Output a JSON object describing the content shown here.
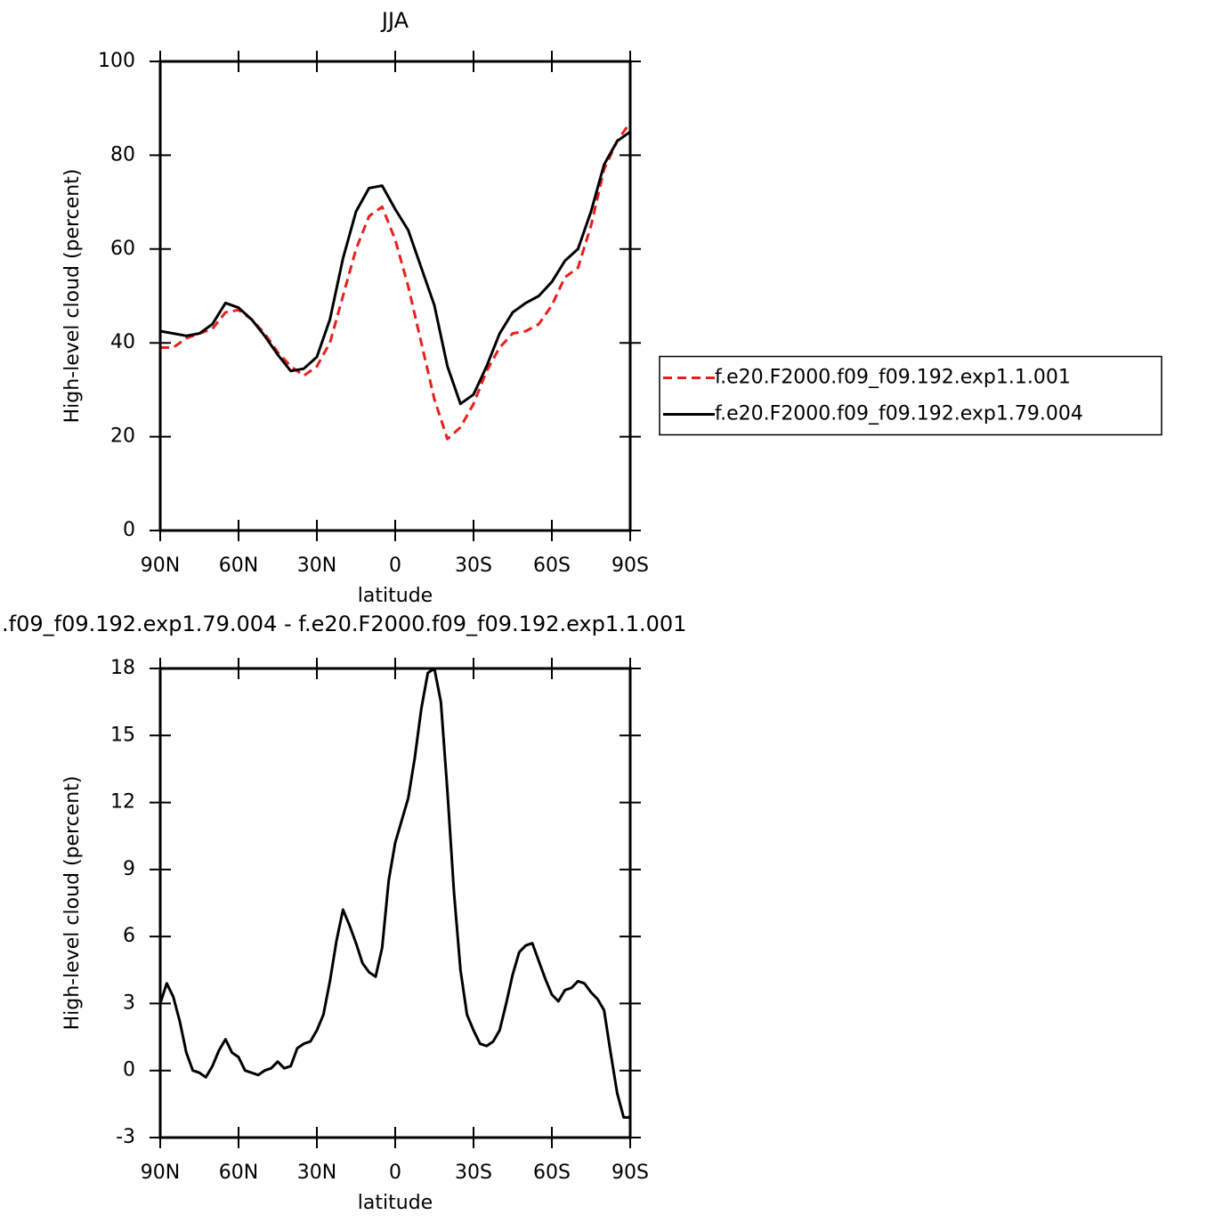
{
  "chart_data": [
    {
      "type": "line",
      "title": "JJA",
      "xlabel": "latitude",
      "ylabel": "High-level cloud (percent)",
      "x": [
        90,
        85,
        80,
        75,
        70,
        65,
        60,
        55,
        50,
        45,
        40,
        35,
        30,
        25,
        20,
        15,
        10,
        5,
        0,
        -5,
        -10,
        -15,
        -20,
        -25,
        -30,
        -35,
        -40,
        -45,
        -50,
        -55,
        -60,
        -65,
        -70,
        -75,
        -80,
        -85,
        -90
      ],
      "series": [
        {
          "name": "f.e20.F2000.f09_f09.192.exp1.1.001",
          "color": "#e8201c",
          "style": "dashed",
          "values": [
            39,
            39,
            41,
            42,
            43,
            46.5,
            47,
            45,
            42,
            38,
            35,
            33,
            35,
            40,
            50,
            60,
            67,
            69,
            62,
            52,
            40,
            28,
            19.5,
            22,
            27,
            34,
            39,
            42,
            42.5,
            44,
            48,
            54,
            56,
            65,
            77,
            83,
            87
          ]
        },
        {
          "name": "f.e20.F2000.f09_f09.192.exp1.79.004",
          "color": "#000000",
          "style": "solid",
          "values": [
            42.5,
            42,
            41.5,
            42,
            44,
            48.5,
            47.5,
            45,
            41.5,
            37.5,
            34,
            34.5,
            37,
            45,
            58,
            68,
            73,
            73.5,
            68.5,
            64,
            56,
            48,
            35,
            27,
            29,
            35,
            42,
            46.5,
            48.5,
            50,
            53,
            57.5,
            60,
            68,
            78,
            83,
            85
          ]
        }
      ],
      "xlim": [
        90,
        -90
      ],
      "xticks": [
        {
          "value": 90,
          "label": "90N"
        },
        {
          "value": 60,
          "label": "60N"
        },
        {
          "value": 30,
          "label": "30N"
        },
        0,
        {
          "value": -30,
          "label": "30S"
        },
        {
          "value": -60,
          "label": "60S"
        },
        {
          "value": -90,
          "label": "90S"
        }
      ],
      "ylim": [
        0,
        100
      ],
      "yticks": [
        0,
        20,
        40,
        60,
        80,
        100
      ],
      "legend": "right"
    },
    {
      "type": "line",
      "title": ".f09_f09.192.exp1.79.004 - f.e20.F2000.f09_f09.192.exp1.1.001",
      "xlabel": "latitude",
      "ylabel": "High-level cloud (percent)",
      "x": [
        90,
        87.5,
        85,
        82.5,
        80,
        77.5,
        75,
        72.5,
        70,
        67.5,
        65,
        62.5,
        60,
        57.5,
        55,
        52.5,
        50,
        47.5,
        45,
        42.5,
        40,
        37.5,
        35,
        32.5,
        30,
        27.5,
        25,
        22.5,
        20,
        17.5,
        15,
        12.5,
        10,
        7.5,
        5,
        2.5,
        0,
        -2.5,
        -5,
        -7.5,
        -10,
        -12.5,
        -15,
        -17.5,
        -20,
        -22.5,
        -25,
        -27.5,
        -30,
        -32.5,
        -35,
        -37.5,
        -40,
        -42.5,
        -45,
        -47.5,
        -50,
        -52.5,
        -55,
        -57.5,
        -60,
        -62.5,
        -65,
        -67.5,
        -70,
        -72.5,
        -75,
        -77.5,
        -80,
        -82.5,
        -85,
        -87.5,
        -90
      ],
      "series": [
        {
          "color": "#000000",
          "style": "solid",
          "values": [
            3.0,
            3.9,
            3.3,
            2.2,
            0.8,
            0.0,
            -0.1,
            -0.3,
            0.2,
            0.9,
            1.4,
            0.8,
            0.6,
            0.0,
            -0.1,
            -0.2,
            0.0,
            0.1,
            0.4,
            0.1,
            0.2,
            1.0,
            1.2,
            1.3,
            1.8,
            2.5,
            4.0,
            5.8,
            7.2,
            6.5,
            5.7,
            4.8,
            4.4,
            4.2,
            5.5,
            8.5,
            10.2,
            11.2,
            12.2,
            14.0,
            16.2,
            17.8,
            18.0,
            16.5,
            12.5,
            8.0,
            4.5,
            2.5,
            1.8,
            1.2,
            1.1,
            1.3,
            1.8,
            3.0,
            4.3,
            5.3,
            5.6,
            5.7,
            4.9,
            4.1,
            3.4,
            3.1,
            3.6,
            3.7,
            4.0,
            3.9,
            3.5,
            3.2,
            2.7,
            0.8,
            -1.0,
            -2.1,
            -2.1
          ]
        }
      ],
      "xlim": [
        90,
        -90
      ],
      "xticks": [
        {
          "value": 90,
          "label": "90N"
        },
        {
          "value": 60,
          "label": "60N"
        },
        {
          "value": 30,
          "label": "30N"
        },
        0,
        {
          "value": -30,
          "label": "30S"
        },
        {
          "value": -60,
          "label": "60S"
        },
        {
          "value": -90,
          "label": "90S"
        }
      ],
      "ylim": [
        -3,
        18
      ],
      "yticks": [
        -3,
        0,
        3,
        6,
        9,
        12,
        15,
        18
      ]
    }
  ]
}
